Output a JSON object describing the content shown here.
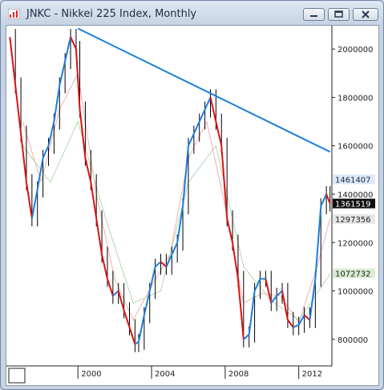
{
  "window": {
    "title": "JNKC - Nikkei 225 Index, Monthly",
    "icon": "chart-app-icon",
    "controls": {
      "minimize": "minimize-icon",
      "maximize": "maximize-icon",
      "close": "close-icon"
    }
  },
  "chart_data": {
    "type": "line",
    "title": "JNKC - Nikkei 225 Index, Monthly",
    "y_axis": {
      "range": [
        690000,
        2090000
      ],
      "ticks": [
        800000,
        1000000,
        1200000,
        1400000,
        1600000,
        1800000,
        2000000
      ],
      "position": "right"
    },
    "x_axis": {
      "range": [
        1996.2,
        2013.8
      ],
      "ticks": [
        "2000",
        "2004",
        "2008",
        "2012"
      ]
    },
    "grid": false,
    "price_tags": [
      {
        "value": "1461407",
        "bg": "#dde9f8",
        "fg": "#1b2a44"
      },
      {
        "value": "1361519",
        "bg": "#111111",
        "fg": "#ffffff"
      },
      {
        "value": "1297356",
        "bg": "#e6e6e6",
        "fg": "#222222"
      },
      {
        "value": "1072732",
        "bg": "#d9ecd4",
        "fg": "#222222"
      }
    ],
    "trendline": {
      "color": "#1a7ee0",
      "points": [
        [
          2000.0,
          2085000
        ],
        [
          2013.7,
          1575000
        ]
      ]
    },
    "series": [
      {
        "kind": "ohlc-close",
        "up_color": "#1a7ee0",
        "down_color": "#e01010",
        "wick_color": "#000000",
        "x": [
          1996.3,
          1996.6,
          1996.9,
          1997.2,
          1997.5,
          1997.8,
          1998.1,
          1998.4,
          1998.7,
          1999.0,
          1999.3,
          1999.6,
          1999.9,
          2000.1,
          2000.4,
          2000.7,
          2001.0,
          2001.3,
          2001.6,
          2001.9,
          2002.2,
          2002.5,
          2002.8,
          2003.1,
          2003.3,
          2003.6,
          2003.9,
          2004.2,
          2004.5,
          2004.8,
          2005.1,
          2005.4,
          2005.7,
          2006.0,
          2006.3,
          2006.6,
          2006.9,
          2007.2,
          2007.5,
          2007.8,
          2008.1,
          2008.4,
          2008.7,
          2009.0,
          2009.3,
          2009.6,
          2009.9,
          2010.2,
          2010.5,
          2010.8,
          2011.1,
          2011.4,
          2011.7,
          2012.0,
          2012.3,
          2012.6,
          2012.9,
          2013.2,
          2013.5,
          2013.7
        ],
        "close": [
          2050000,
          1850000,
          1650000,
          1450000,
          1300000,
          1420000,
          1550000,
          1600000,
          1700000,
          1850000,
          1950000,
          2050000,
          2000000,
          1750000,
          1550000,
          1450000,
          1300000,
          1150000,
          1050000,
          980000,
          1000000,
          920000,
          850000,
          780000,
          790000,
          900000,
          1000000,
          1100000,
          1120000,
          1100000,
          1150000,
          1200000,
          1350000,
          1600000,
          1650000,
          1700000,
          1750000,
          1800000,
          1700000,
          1600000,
          1300000,
          1200000,
          1050000,
          800000,
          820000,
          1000000,
          1050000,
          1050000,
          950000,
          980000,
          1000000,
          880000,
          850000,
          860000,
          900000,
          880000,
          1050000,
          1350000,
          1400000,
          1361519
        ]
      },
      {
        "name": "",
        "kind": "moving-average",
        "color": "#f0b0b0",
        "x": [
          1997.0,
          1998.0,
          1999.0,
          2000.0,
          2001.0,
          2002.0,
          2003.0,
          2004.0,
          2005.0,
          2006.0,
          2007.0,
          2008.0,
          2009.0,
          2010.0,
          2011.0,
          2012.0,
          2013.0,
          2013.7
        ],
        "values": [
          1700000,
          1450000,
          1750000,
          1900000,
          1400000,
          1050000,
          880000,
          1020000,
          1150000,
          1550000,
          1700000,
          1350000,
          950000,
          990000,
          980000,
          870000,
          1100000,
          1300000
        ]
      },
      {
        "name": "",
        "kind": "moving-average",
        "color": "#b5d8b0",
        "x": [
          1997.0,
          1998.5,
          2000.0,
          2001.5,
          2003.0,
          2004.5,
          2006.0,
          2007.5,
          2009.0,
          2010.5,
          2012.0,
          2013.7
        ],
        "values": [
          1600000,
          1450000,
          1700000,
          1300000,
          950000,
          1000000,
          1450000,
          1600000,
          1100000,
          960000,
          880000,
          1070000
        ]
      }
    ]
  }
}
